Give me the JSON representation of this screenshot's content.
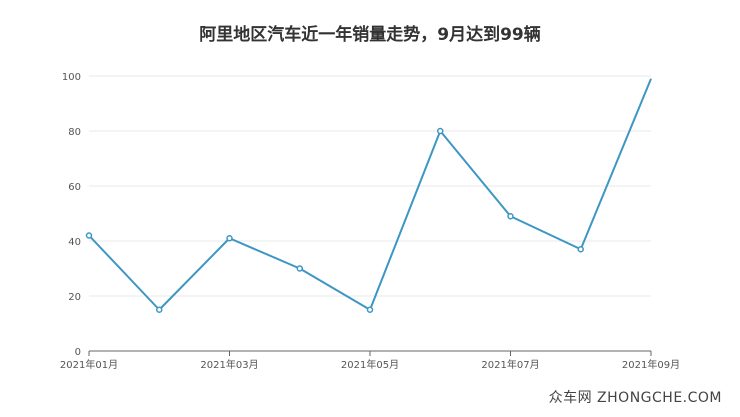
{
  "chart_data": {
    "type": "line",
    "title": "阿里地区汽车近一年销量走势，9月达到99辆",
    "x": [
      "2021年01月",
      "2021年02月",
      "2021年03月",
      "2021年04月",
      "2021年05月",
      "2021年06月",
      "2021年07月",
      "2021年08月",
      "2021年09月"
    ],
    "x_tick_labels": [
      "2021年01月",
      "2021年03月",
      "2021年05月",
      "2021年07月",
      "2021年09月"
    ],
    "series": [
      {
        "values": [
          42,
          15,
          41,
          30,
          15,
          80,
          49,
          37,
          99
        ]
      }
    ],
    "ylim": [
      0,
      100
    ],
    "y_ticks": [
      0,
      20,
      40,
      60,
      80,
      100
    ],
    "grid": true,
    "xlabel": "",
    "ylabel": "",
    "line_color": "#3d96c3",
    "grid_color": "#e8e8e8",
    "axis_color": "#666666"
  },
  "watermark": "众车网 ZHONGCHE.COM"
}
